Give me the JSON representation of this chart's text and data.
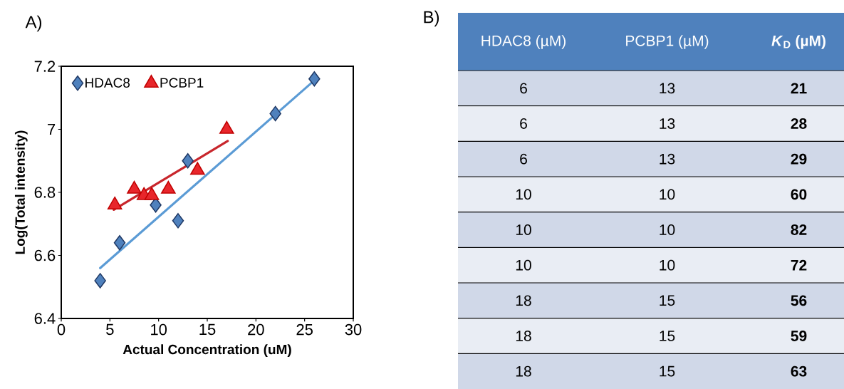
{
  "chart_data": [
    {
      "type": "scatter",
      "title": "A)",
      "xlabel": "Actual Concentration (uM)",
      "ylabel": "Log(Total intensity)",
      "xlim": [
        0,
        30
      ],
      "xticks": [
        0,
        5,
        10,
        15,
        20,
        25,
        30
      ],
      "ylim": [
        6.4,
        7.2
      ],
      "yticks": [
        6.4,
        6.6,
        6.8,
        7,
        7.2
      ],
      "legend": "top left",
      "series": [
        {
          "name": "HDAC8",
          "type": "scatter",
          "marker": "diamond",
          "color": "#4f81bd",
          "x": [
            4,
            6,
            9.7,
            12,
            13,
            22,
            26
          ],
          "values": [
            6.52,
            6.64,
            6.76,
            6.71,
            6.9,
            7.05,
            7.16
          ]
        },
        {
          "name": "PCBP1",
          "type": "scatter",
          "marker": "triangle",
          "color": "#e8262b",
          "x": [
            5.5,
            7.5,
            8.5,
            9.3,
            11,
            14,
            17
          ],
          "values": [
            6.76,
            6.81,
            6.79,
            6.79,
            6.81,
            6.87,
            7.0
          ]
        },
        {
          "type": "line",
          "marker": "none",
          "color": "#5b9bd5",
          "x": [
            4,
            26
          ],
          "values": [
            6.56,
            7.155
          ]
        },
        {
          "type": "line",
          "marker": "none",
          "color": "#c8262c",
          "x": [
            5.4,
            17.1
          ],
          "values": [
            6.745,
            6.963
          ]
        }
      ]
    },
    {
      "type": "other",
      "title": "B)",
      "categories": [
        "HDAC8 (µM)",
        "PCBP1 (µM)",
        "*K*$_{D}$ (µM)"
      ],
      "cell_labels": [
        [
          "6",
          "13",
          "21"
        ],
        [
          "6",
          "13",
          "28"
        ],
        [
          "6",
          "13",
          "29"
        ],
        [
          "10",
          "10",
          "60"
        ],
        [
          "10",
          "10",
          "82"
        ],
        [
          "10",
          "10",
          "72"
        ],
        [
          "18",
          "15",
          "56"
        ],
        [
          "18",
          "15",
          "59"
        ],
        [
          "18",
          "15",
          "63"
        ]
      ]
    }
  ]
}
